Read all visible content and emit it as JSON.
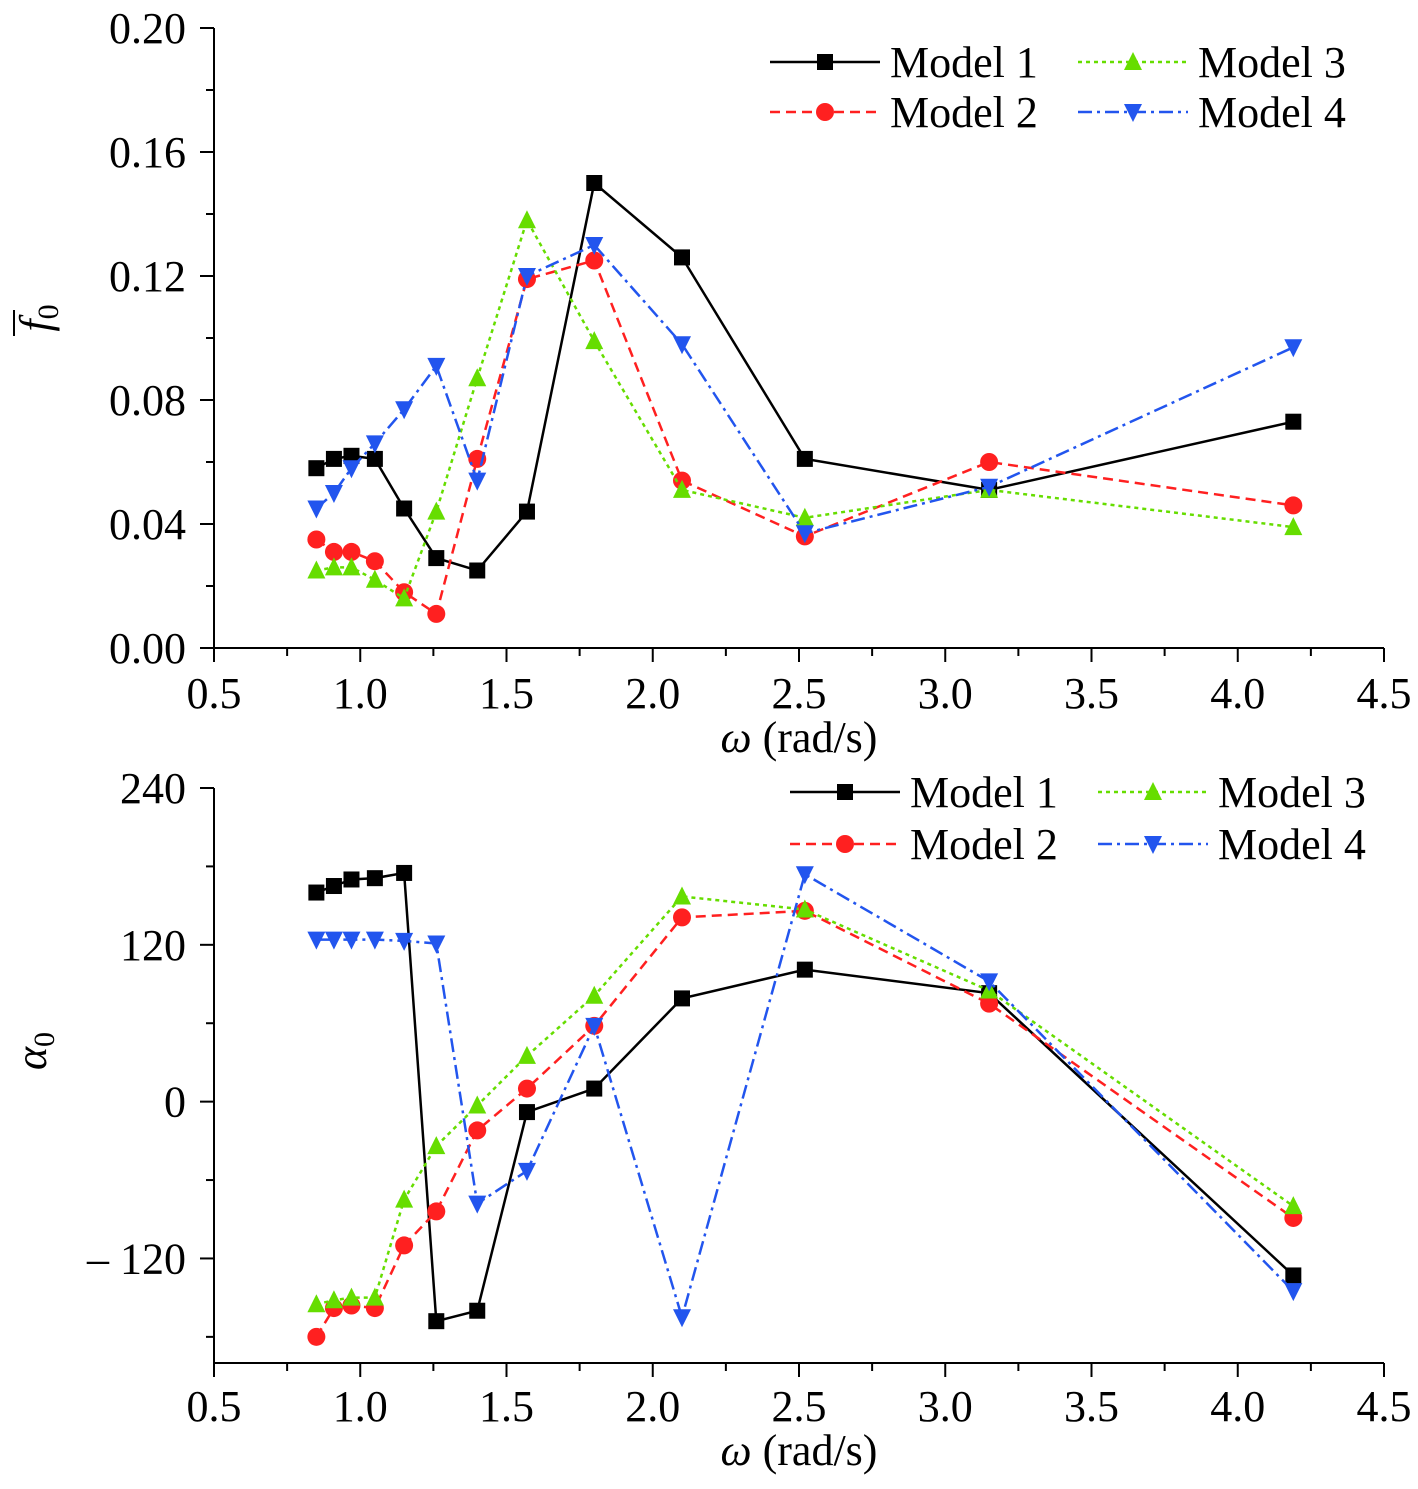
{
  "chart_data": [
    {
      "type": "line",
      "xlabel_symbol": "ω",
      "xlabel_unit": "(rad/s)",
      "ylabel_symbol": "f",
      "ylabel_subscript": "0",
      "ylabel_overbar": true,
      "xlim": [
        0.5,
        4.5
      ],
      "ylim": [
        0,
        0.2
      ],
      "x_ticks": [
        0.5,
        1.0,
        1.5,
        2.0,
        2.5,
        3.0,
        3.5,
        4.0,
        4.5
      ],
      "x_tick_labels": [
        "0.5",
        "1.0",
        "1.5",
        "2.0",
        "2.5",
        "3.0",
        "3.5",
        "4.0",
        "4.5"
      ],
      "y_ticks": [
        0,
        0.04,
        0.08,
        0.12,
        0.16,
        0.2
      ],
      "y_tick_labels": [
        "0.00",
        "0.04",
        "0.08",
        "0.12",
        "0.16",
        "0.20"
      ],
      "grid": false,
      "legend_position": "top-right",
      "series": [
        {
          "name": "Model 1",
          "color": "#000000",
          "marker": "square",
          "dash": "solid",
          "x": [
            0.85,
            0.91,
            0.97,
            1.05,
            1.15,
            1.26,
            1.4,
            1.57,
            1.8,
            2.1,
            2.52,
            3.15,
            4.19
          ],
          "y": [
            0.058,
            0.061,
            0.062,
            0.061,
            0.045,
            0.029,
            0.025,
            0.044,
            0.15,
            0.126,
            0.061,
            0.051,
            0.073
          ]
        },
        {
          "name": "Model 2",
          "color": "#ff2020",
          "marker": "circle",
          "dash": "dashed",
          "x": [
            0.85,
            0.91,
            0.97,
            1.05,
            1.15,
            1.26,
            1.4,
            1.57,
            1.8,
            2.1,
            2.52,
            3.15,
            4.19
          ],
          "y": [
            0.035,
            0.031,
            0.031,
            0.028,
            0.018,
            0.011,
            0.061,
            0.119,
            0.125,
            0.054,
            0.036,
            0.06,
            0.046
          ]
        },
        {
          "name": "Model 3",
          "color": "#66dd00",
          "marker": "triangle-up",
          "dash": "dotted",
          "x": [
            0.85,
            0.91,
            0.97,
            1.05,
            1.15,
            1.26,
            1.4,
            1.57,
            1.8,
            2.1,
            2.52,
            3.15,
            4.19
          ],
          "y": [
            0.025,
            0.026,
            0.026,
            0.022,
            0.016,
            0.044,
            0.087,
            0.138,
            0.099,
            0.051,
            0.042,
            0.051,
            0.039
          ]
        },
        {
          "name": "Model 4",
          "color": "#2255ee",
          "marker": "triangle-down",
          "dash": "dashdot",
          "x": [
            0.85,
            0.91,
            0.97,
            1.05,
            1.15,
            1.26,
            1.4,
            1.57,
            1.8,
            2.1,
            2.52,
            3.15,
            4.19
          ],
          "y": [
            0.045,
            0.05,
            0.058,
            0.066,
            0.077,
            0.091,
            0.054,
            0.12,
            0.13,
            0.098,
            0.037,
            0.052,
            0.097
          ]
        }
      ]
    },
    {
      "type": "line",
      "xlabel_symbol": "ω",
      "xlabel_unit": "(rad/s)",
      "ylabel_symbol": "α",
      "ylabel_subscript": "0",
      "ylabel_overbar": false,
      "xlim": [
        0.5,
        4.5
      ],
      "ylim": [
        -200,
        240
      ],
      "x_ticks": [
        0.5,
        1.0,
        1.5,
        2.0,
        2.5,
        3.0,
        3.5,
        4.0,
        4.5
      ],
      "x_tick_labels": [
        "0.5",
        "1.0",
        "1.5",
        "2.0",
        "2.5",
        "3.0",
        "3.5",
        "4.0",
        "4.5"
      ],
      "y_ticks": [
        -120,
        0,
        120,
        240
      ],
      "y_tick_labels": [
        "– 120",
        "0",
        "120",
        "240"
      ],
      "grid": false,
      "legend_position": "top-right",
      "series": [
        {
          "name": "Model 1",
          "color": "#000000",
          "marker": "square",
          "dash": "solid",
          "x": [
            0.85,
            0.91,
            0.97,
            1.05,
            1.15,
            1.26,
            1.4,
            1.57,
            1.8,
            2.1,
            2.52,
            3.15,
            4.19
          ],
          "y": [
            160,
            165,
            170,
            171,
            175,
            -168,
            -160,
            -8,
            10,
            79,
            101,
            83,
            -133
          ]
        },
        {
          "name": "Model 2",
          "color": "#ff2020",
          "marker": "circle",
          "dash": "dashed",
          "x": [
            0.85,
            0.91,
            0.97,
            1.05,
            1.15,
            1.26,
            1.4,
            1.57,
            1.8,
            2.1,
            2.52,
            3.15,
            4.19
          ],
          "y": [
            -180,
            -158,
            -156,
            -158,
            -110,
            -84,
            -22,
            10,
            58,
            141,
            146,
            75,
            -89
          ]
        },
        {
          "name": "Model 3",
          "color": "#66dd00",
          "marker": "triangle-up",
          "dash": "dotted",
          "x": [
            0.85,
            0.91,
            0.97,
            1.05,
            1.15,
            1.26,
            1.4,
            1.57,
            1.8,
            2.1,
            2.52,
            3.15,
            4.19
          ],
          "y": [
            -155,
            -152,
            -150,
            -150,
            -75,
            -34,
            -3,
            35,
            81,
            157,
            147,
            85,
            -80
          ]
        },
        {
          "name": "Model 4",
          "color": "#2255ee",
          "marker": "triangle-down",
          "dash": "dashdot",
          "x": [
            0.85,
            0.91,
            0.97,
            1.05,
            1.15,
            1.26,
            1.4,
            1.57,
            1.8,
            2.1,
            2.52,
            3.15,
            4.19
          ],
          "y": [
            124,
            124,
            124,
            124,
            123,
            121,
            -78,
            -53,
            58,
            -165,
            174,
            92,
            -145
          ]
        }
      ]
    }
  ]
}
